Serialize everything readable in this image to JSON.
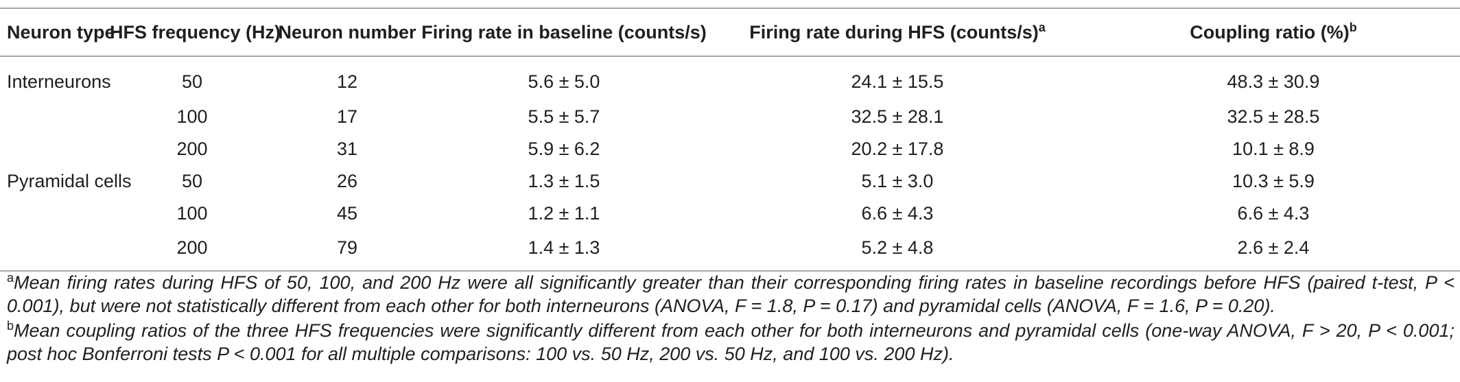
{
  "table": {
    "headers": [
      {
        "text": "Neuron type",
        "sup": ""
      },
      {
        "text": "HFS frequency (Hz)",
        "sup": ""
      },
      {
        "text": "Neuron number",
        "sup": ""
      },
      {
        "text": "Firing rate in baseline (counts/s)",
        "sup": ""
      },
      {
        "text": "Firing rate during HFS (counts/s)",
        "sup": "a"
      },
      {
        "text": "Coupling ratio (%)",
        "sup": "b"
      }
    ],
    "rows": [
      [
        "Interneurons",
        "50",
        "12",
        "5.6 ± 5.0",
        "24.1 ± 15.5",
        "48.3 ± 30.9"
      ],
      [
        "",
        "100",
        "17",
        "5.5 ± 5.7",
        "32.5 ± 28.1",
        "32.5 ± 28.5"
      ],
      [
        "",
        "200",
        "31",
        "5.9 ± 6.2",
        "20.2 ± 17.8",
        "10.1 ± 8.9"
      ],
      [
        "Pyramidal cells",
        "50",
        "26",
        "1.3 ± 1.5",
        "5.1 ± 3.0",
        "10.3 ± 5.9"
      ],
      [
        "",
        "100",
        "45",
        "1.2 ± 1.1",
        "6.6 ± 4.3",
        "6.6 ± 4.3"
      ],
      [
        "",
        "200",
        "79",
        "1.4 ± 1.3",
        "5.2 ± 4.8",
        "2.6 ± 2.4"
      ]
    ]
  },
  "footnotes": [
    {
      "mark": "a",
      "text": "Mean firing rates during HFS of 50, 100, and 200 Hz were all significantly greater than their corresponding firing rates in baseline recordings before HFS (paired t-test, P < 0.001), but were not statistically different from each other for both interneurons (ANOVA, F = 1.8, P = 0.17) and pyramidal cells (ANOVA, F = 1.6, P = 0.20)."
    },
    {
      "mark": "b",
      "text": "Mean coupling ratios of the three HFS frequencies were significantly different from each other for both interneurons and pyramidal cells (one-way ANOVA, F > 20, P < 0.001; post hoc Bonferroni tests P < 0.001 for all multiple comparisons: 100 vs. 50 Hz, 200 vs. 50 Hz, and 100 vs. 200 Hz)."
    }
  ]
}
